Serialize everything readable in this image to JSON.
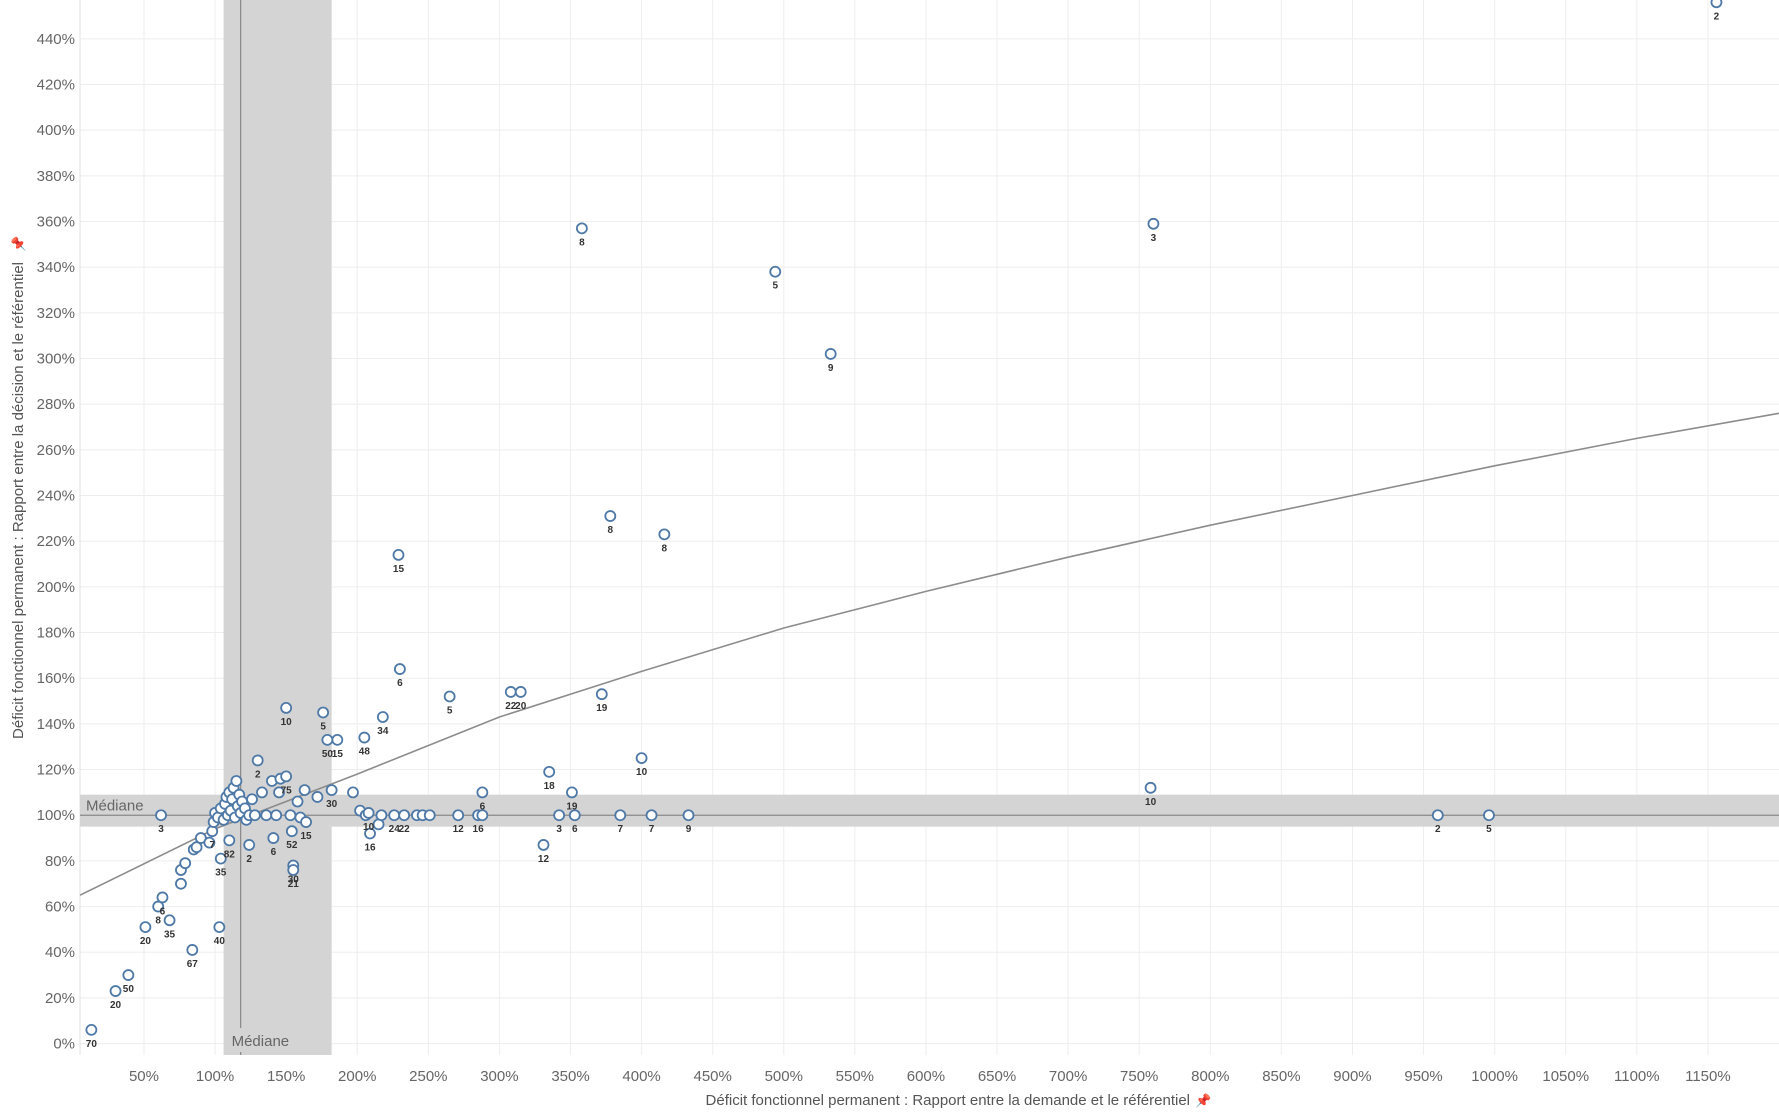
{
  "chart_data": {
    "type": "scatter",
    "xlabel": "Déficit fonctionnel permanent : Rapport entre la demande et le référentiel",
    "ylabel": "Déficit fonctionnel permanent : Rapport entre la décision et le référentiel",
    "xlim": [
      5,
      1200
    ],
    "ylim": [
      -5,
      457
    ],
    "x_ticks": [
      "50%",
      "100%",
      "150%",
      "200%",
      "250%",
      "300%",
      "350%",
      "400%",
      "450%",
      "500%",
      "550%",
      "600%",
      "650%",
      "700%",
      "750%",
      "800%",
      "850%",
      "900%",
      "950%",
      "1000%",
      "1050%",
      "1100%",
      "1150%"
    ],
    "x_tick_values": [
      50,
      100,
      150,
      200,
      250,
      300,
      350,
      400,
      450,
      500,
      550,
      600,
      650,
      700,
      750,
      800,
      850,
      900,
      950,
      1000,
      1050,
      1100,
      1150
    ],
    "y_ticks": [
      "0%",
      "20%",
      "40%",
      "60%",
      "80%",
      "100%",
      "120%",
      "140%",
      "160%",
      "180%",
      "200%",
      "220%",
      "240%",
      "260%",
      "280%",
      "300%",
      "320%",
      "340%",
      "360%",
      "380%",
      "400%",
      "420%",
      "440%"
    ],
    "y_tick_values": [
      0,
      20,
      40,
      60,
      80,
      100,
      120,
      140,
      160,
      180,
      200,
      220,
      240,
      260,
      280,
      300,
      320,
      340,
      360,
      380,
      400,
      420,
      440
    ],
    "grid": true,
    "pin_icon": "pin-icon",
    "colors": {
      "marker": "#4e79a7",
      "band": "#d4d4d4",
      "median_line": "#888888",
      "trend": "#8c8c8c",
      "grid": "#eeeeee"
    },
    "median_x": {
      "label": "Médiane",
      "value": 118,
      "band": [
        106,
        182
      ]
    },
    "median_y": {
      "label": "Médiane",
      "value": 100,
      "band": [
        95,
        109
      ]
    },
    "trend_line": {
      "x": [
        5,
        100,
        200,
        300,
        400,
        500,
        600,
        700,
        800,
        900,
        1000,
        1100,
        1200
      ],
      "y": [
        65,
        94,
        118,
        143,
        163,
        182,
        198,
        213,
        227,
        240,
        253,
        265,
        276
      ]
    },
    "points": [
      {
        "x": 13,
        "y": 6,
        "label": "70"
      },
      {
        "x": 30,
        "y": 23,
        "label": "20"
      },
      {
        "x": 39,
        "y": 30,
        "label": "50"
      },
      {
        "x": 51,
        "y": 51,
        "label": "20"
      },
      {
        "x": 60,
        "y": 60,
        "label": "8"
      },
      {
        "x": 63,
        "y": 64,
        "label": "6"
      },
      {
        "x": 68,
        "y": 54,
        "label": "35"
      },
      {
        "x": 84,
        "y": 41,
        "label": "67"
      },
      {
        "x": 62,
        "y": 100,
        "label": "3"
      },
      {
        "x": 103,
        "y": 51,
        "label": "40"
      },
      {
        "x": 76,
        "y": 70,
        "label": ""
      },
      {
        "x": 76,
        "y": 76,
        "label": ""
      },
      {
        "x": 79,
        "y": 79,
        "label": ""
      },
      {
        "x": 85,
        "y": 85,
        "label": ""
      },
      {
        "x": 87,
        "y": 86,
        "label": ""
      },
      {
        "x": 90,
        "y": 90,
        "label": ""
      },
      {
        "x": 96,
        "y": 88,
        "label": ""
      },
      {
        "x": 98,
        "y": 93,
        "label": "7"
      },
      {
        "x": 104,
        "y": 81,
        "label": "35"
      },
      {
        "x": 110,
        "y": 89,
        "label": "82"
      },
      {
        "x": 124,
        "y": 87,
        "label": "2"
      },
      {
        "x": 141,
        "y": 90,
        "label": "6"
      },
      {
        "x": 154,
        "y": 93,
        "label": "52"
      },
      {
        "x": 155,
        "y": 78,
        "label": "30"
      },
      {
        "x": 155,
        "y": 76,
        "label": "21"
      },
      {
        "x": 99,
        "y": 97,
        "label": ""
      },
      {
        "x": 100,
        "y": 101,
        "label": ""
      },
      {
        "x": 102,
        "y": 99,
        "label": ""
      },
      {
        "x": 104,
        "y": 103,
        "label": ""
      },
      {
        "x": 106,
        "y": 98,
        "label": ""
      },
      {
        "x": 107,
        "y": 105,
        "label": ""
      },
      {
        "x": 108,
        "y": 108,
        "label": ""
      },
      {
        "x": 109,
        "y": 100,
        "label": ""
      },
      {
        "x": 110,
        "y": 110,
        "label": ""
      },
      {
        "x": 111,
        "y": 102,
        "label": ""
      },
      {
        "x": 112,
        "y": 107,
        "label": ""
      },
      {
        "x": 113,
        "y": 112,
        "label": ""
      },
      {
        "x": 114,
        "y": 99,
        "label": ""
      },
      {
        "x": 115,
        "y": 115,
        "label": ""
      },
      {
        "x": 116,
        "y": 104,
        "label": ""
      },
      {
        "x": 117,
        "y": 109,
        "label": ""
      },
      {
        "x": 118,
        "y": 101,
        "label": ""
      },
      {
        "x": 119,
        "y": 106,
        "label": ""
      },
      {
        "x": 121,
        "y": 103,
        "label": ""
      },
      {
        "x": 122,
        "y": 98,
        "label": ""
      },
      {
        "x": 124,
        "y": 100,
        "label": ""
      },
      {
        "x": 126,
        "y": 107,
        "label": ""
      },
      {
        "x": 128,
        "y": 100,
        "label": ""
      },
      {
        "x": 130,
        "y": 124,
        "label": "2"
      },
      {
        "x": 133,
        "y": 110,
        "label": ""
      },
      {
        "x": 136,
        "y": 100,
        "label": ""
      },
      {
        "x": 140,
        "y": 115,
        "label": ""
      },
      {
        "x": 143,
        "y": 100,
        "label": ""
      },
      {
        "x": 145,
        "y": 110,
        "label": ""
      },
      {
        "x": 146,
        "y": 116,
        "label": ""
      },
      {
        "x": 150,
        "y": 117,
        "label": "75"
      },
      {
        "x": 150,
        "y": 147,
        "label": "10"
      },
      {
        "x": 153,
        "y": 100,
        "label": ""
      },
      {
        "x": 158,
        "y": 106,
        "label": ""
      },
      {
        "x": 160,
        "y": 99,
        "label": ""
      },
      {
        "x": 163,
        "y": 111,
        "label": ""
      },
      {
        "x": 164,
        "y": 97,
        "label": "15"
      },
      {
        "x": 172,
        "y": 108,
        "label": ""
      },
      {
        "x": 176,
        "y": 145,
        "label": "5"
      },
      {
        "x": 179,
        "y": 133,
        "label": "50"
      },
      {
        "x": 182,
        "y": 111,
        "label": "30"
      },
      {
        "x": 186,
        "y": 133,
        "label": "15"
      },
      {
        "x": 197,
        "y": 110,
        "label": ""
      },
      {
        "x": 202,
        "y": 102,
        "label": ""
      },
      {
        "x": 205,
        "y": 134,
        "label": "48"
      },
      {
        "x": 206,
        "y": 100,
        "label": ""
      },
      {
        "x": 208,
        "y": 101,
        "label": "10"
      },
      {
        "x": 209,
        "y": 92,
        "label": "16"
      },
      {
        "x": 215,
        "y": 96,
        "label": ""
      },
      {
        "x": 217,
        "y": 100,
        "label": ""
      },
      {
        "x": 218,
        "y": 143,
        "label": "34"
      },
      {
        "x": 229,
        "y": 214,
        "label": "15"
      },
      {
        "x": 230,
        "y": 164,
        "label": "6"
      },
      {
        "x": 226,
        "y": 100,
        "label": "24"
      },
      {
        "x": 233,
        "y": 100,
        "label": "22"
      },
      {
        "x": 242,
        "y": 100,
        "label": ""
      },
      {
        "x": 246,
        "y": 100,
        "label": ""
      },
      {
        "x": 251,
        "y": 100,
        "label": ""
      },
      {
        "x": 265,
        "y": 152,
        "label": "5"
      },
      {
        "x": 271,
        "y": 100,
        "label": "12"
      },
      {
        "x": 285,
        "y": 100,
        "label": "16"
      },
      {
        "x": 288,
        "y": 100,
        "label": ""
      },
      {
        "x": 288,
        "y": 110,
        "label": "6"
      },
      {
        "x": 308,
        "y": 154,
        "label": "22"
      },
      {
        "x": 315,
        "y": 154,
        "label": "20"
      },
      {
        "x": 331,
        "y": 87,
        "label": "12"
      },
      {
        "x": 335,
        "y": 119,
        "label": "18"
      },
      {
        "x": 342,
        "y": 100,
        "label": "3"
      },
      {
        "x": 351,
        "y": 110,
        "label": "19"
      },
      {
        "x": 353,
        "y": 100,
        "label": "6"
      },
      {
        "x": 358,
        "y": 357,
        "label": "8"
      },
      {
        "x": 372,
        "y": 153,
        "label": "19"
      },
      {
        "x": 378,
        "y": 231,
        "label": "8"
      },
      {
        "x": 385,
        "y": 100,
        "label": "7"
      },
      {
        "x": 400,
        "y": 125,
        "label": "10"
      },
      {
        "x": 407,
        "y": 100,
        "label": "7"
      },
      {
        "x": 416,
        "y": 223,
        "label": "8"
      },
      {
        "x": 433,
        "y": 100,
        "label": "9"
      },
      {
        "x": 494,
        "y": 338,
        "label": "5"
      },
      {
        "x": 533,
        "y": 302,
        "label": "9"
      },
      {
        "x": 758,
        "y": 112,
        "label": "10"
      },
      {
        "x": 760,
        "y": 359,
        "label": "3"
      },
      {
        "x": 960,
        "y": 100,
        "label": "2"
      },
      {
        "x": 996,
        "y": 100,
        "label": "5"
      },
      {
        "x": 1156,
        "y": 456,
        "label": "2"
      }
    ]
  }
}
